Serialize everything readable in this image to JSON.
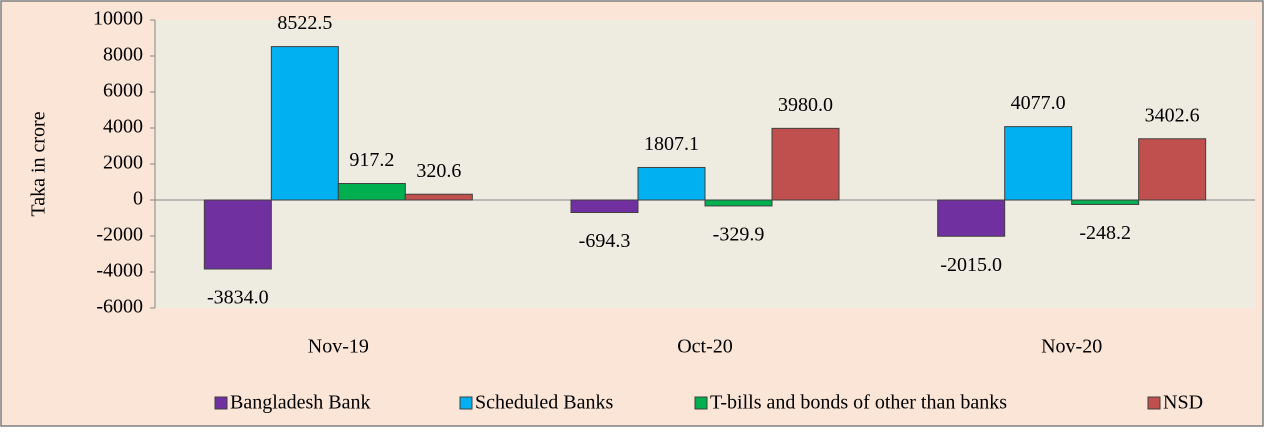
{
  "chart_data": {
    "type": "bar",
    "y_label": "Taka in crore",
    "categories": [
      "Nov-19",
      "Oct-20",
      "Nov-20"
    ],
    "series": [
      {
        "name": "Bangladesh Bank",
        "color": "#7030a0",
        "values": [
          -3834.0,
          -694.3,
          -2015.0
        ],
        "value_labels": [
          "-3834.0",
          "-694.3",
          "-2015.0"
        ]
      },
      {
        "name": "Scheduled Banks",
        "color": "#00b0f0",
        "values": [
          8522.5,
          1807.1,
          4077.0
        ],
        "value_labels": [
          "8522.5",
          "1807.1",
          "4077.0"
        ]
      },
      {
        "name": "T-bills and bonds of other than banks",
        "color": "#00b050",
        "values": [
          917.2,
          -329.9,
          -248.2
        ],
        "value_labels": [
          "917.2",
          "-329.9",
          "-248.2"
        ]
      },
      {
        "name": "NSD",
        "color": "#c0504d",
        "values": [
          320.6,
          3980.0,
          3402.6
        ],
        "value_labels": [
          "320.6",
          "3980.0",
          "3402.6"
        ]
      }
    ],
    "ylim": [
      -6000,
      10000
    ],
    "yticks": [
      -6000,
      -4000,
      -2000,
      0,
      2000,
      4000,
      6000,
      8000,
      10000
    ],
    "legend": "bottom"
  }
}
